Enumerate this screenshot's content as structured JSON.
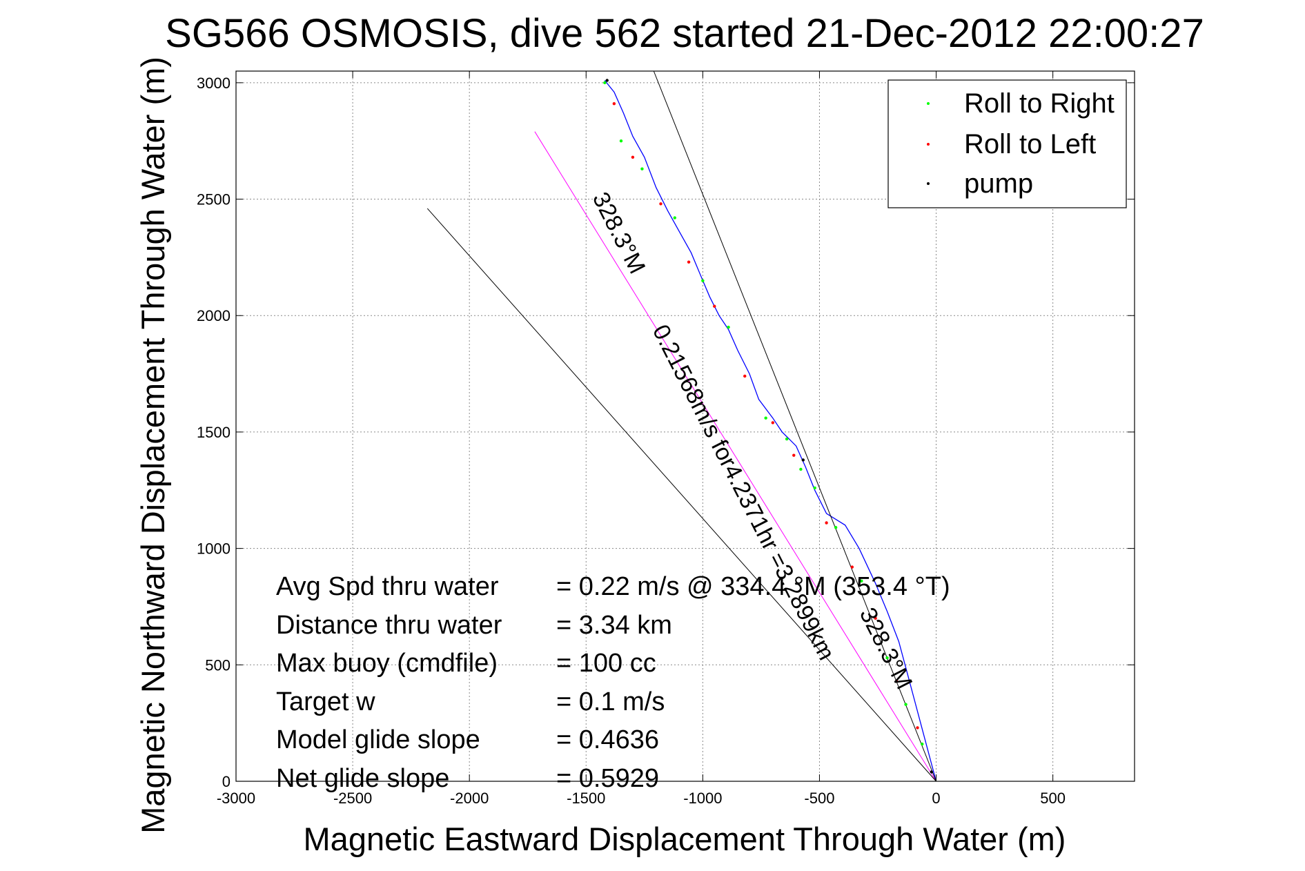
{
  "chart_data": {
    "type": "line",
    "title": "SG566 OSMOSIS, dive 562 started 21-Dec-2012 22:00:27",
    "xlabel": "Magnetic Eastward Displacement Through Water (m)",
    "ylabel": "Magnetic Northward Displacement Through Water (m)",
    "xlim": [
      -3000,
      850
    ],
    "ylim": [
      0,
      3050
    ],
    "xticks": [
      -3000,
      -2500,
      -2000,
      -1500,
      -1000,
      -500,
      0,
      500
    ],
    "yticks": [
      0,
      500,
      1000,
      1500,
      2000,
      2500,
      3000
    ],
    "grid": true,
    "legend": {
      "placement": "top-right",
      "entries": [
        {
          "name": "Roll to Right",
          "color": "#00ff00"
        },
        {
          "name": "Roll to Left",
          "color": "#ff0000"
        },
        {
          "name": "pump",
          "color": "#000000"
        }
      ]
    },
    "series": [
      {
        "name": "track",
        "color": "#0000ff",
        "x": [
          0,
          -40,
          -80,
          -120,
          -160,
          -210,
          -260,
          -330,
          -390,
          -470,
          -520,
          -560,
          -600,
          -660,
          -700,
          -760,
          -800,
          -850,
          -890,
          -930,
          -970,
          -1000,
          -1050,
          -1100,
          -1150,
          -1200,
          -1250,
          -1300,
          -1340,
          -1380,
          -1420
        ],
        "y": [
          0,
          150,
          300,
          450,
          600,
          730,
          850,
          1000,
          1100,
          1150,
          1250,
          1350,
          1440,
          1500,
          1560,
          1640,
          1750,
          1850,
          1940,
          2000,
          2080,
          2150,
          2270,
          2360,
          2450,
          2550,
          2680,
          2770,
          2870,
          2960,
          3010
        ]
      },
      {
        "name": "heading line 328.3 °M",
        "color": "#ff00ff",
        "x": [
          0,
          -1720
        ],
        "y": [
          0,
          2790
        ]
      },
      {
        "name": "boundary line 1",
        "color": "#000000",
        "x": [
          0,
          -1210
        ],
        "y": [
          0,
          3050
        ]
      },
      {
        "name": "boundary line 2",
        "color": "#000000",
        "x": [
          0,
          -2180
        ],
        "y": [
          0,
          2460
        ]
      }
    ],
    "markers": {
      "roll_right": {
        "color": "#00ff00",
        "points": [
          [
            -60,
            160
          ],
          [
            -130,
            330
          ],
          [
            -210,
            530
          ],
          [
            -320,
            860
          ],
          [
            -430,
            1090
          ],
          [
            -520,
            1260
          ],
          [
            -580,
            1340
          ],
          [
            -640,
            1470
          ],
          [
            -730,
            1560
          ],
          [
            -890,
            1950
          ],
          [
            -1000,
            2150
          ],
          [
            -1120,
            2420
          ],
          [
            -1260,
            2630
          ],
          [
            -1350,
            2750
          ],
          [
            -1420,
            3000
          ]
        ]
      },
      "roll_left": {
        "color": "#ff0000",
        "points": [
          [
            -80,
            230
          ],
          [
            -170,
            430
          ],
          [
            -260,
            700
          ],
          [
            -360,
            920
          ],
          [
            -470,
            1110
          ],
          [
            -610,
            1400
          ],
          [
            -700,
            1540
          ],
          [
            -820,
            1740
          ],
          [
            -950,
            2040
          ],
          [
            -1060,
            2230
          ],
          [
            -1180,
            2480
          ],
          [
            -1300,
            2680
          ],
          [
            -1380,
            2910
          ]
        ]
      },
      "pump": {
        "color": "#000000",
        "points": [
          [
            -20,
            40
          ],
          [
            -570,
            1380
          ],
          [
            -1410,
            3010
          ]
        ]
      }
    },
    "annotations": {
      "line_labels": [
        "328.3°M",
        "0.21568m/s for4.2371hr =3.2899km",
        "328.3°M"
      ],
      "stats": [
        {
          "label": "Avg Spd thru water",
          "value": "=  0.22 m/s @ 334.4 °M (353.4 °T)"
        },
        {
          "label": "Distance thru water",
          "value": "=  3.34 km"
        },
        {
          "label": "Max buoy (cmdfile)",
          "value": "= 100 cc"
        },
        {
          "label": "Target w",
          "value": "= 0.1 m/s"
        },
        {
          "label": "Model glide slope",
          "value": "= 0.4636"
        },
        {
          "label": "Net glide slope",
          "value": "= 0.5929"
        }
      ]
    }
  }
}
